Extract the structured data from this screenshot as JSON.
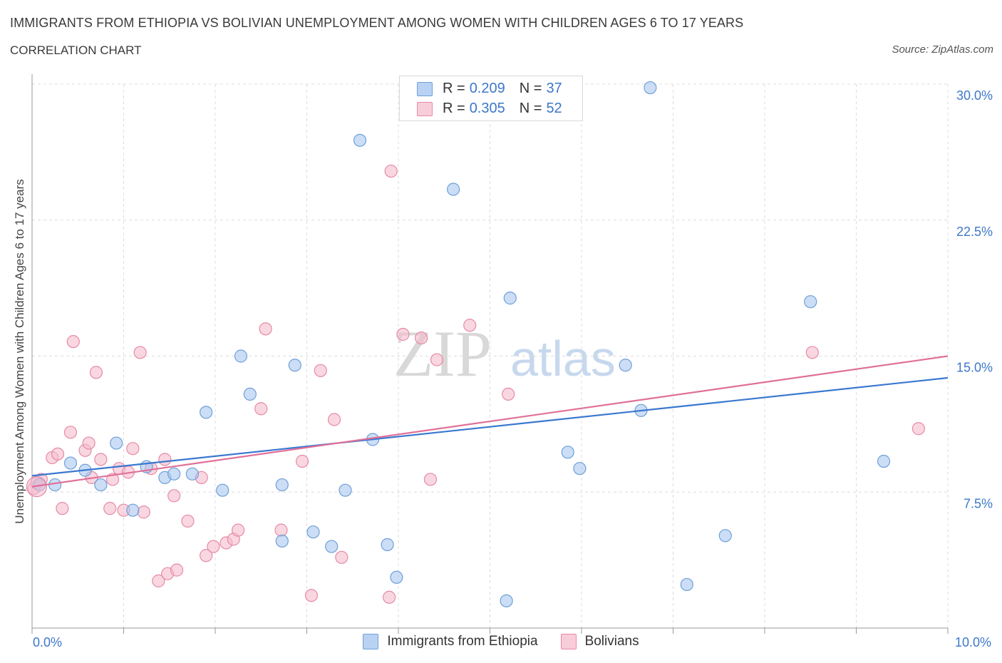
{
  "header": {
    "title": "IMMIGRANTS FROM ETHIOPIA VS BOLIVIAN UNEMPLOYMENT AMONG WOMEN WITH CHILDREN AGES 6 TO 17 YEARS",
    "subtitle": "CORRELATION CHART",
    "source": "Source: ZipAtlas.com"
  },
  "legend_top": [
    {
      "r_label": "R = ",
      "r_value": "0.209",
      "n_label": "N = ",
      "n_value": "37",
      "color": "#a9c8f0"
    },
    {
      "r_label": "R = ",
      "r_value": "0.305",
      "n_label": "N = ",
      "n_value": "52",
      "color": "#f5bccd"
    }
  ],
  "legend_bottom": [
    "Immigrants from Ethiopia",
    "Bolivians"
  ],
  "x_tick_labels": {
    "min": "0.0%",
    "max": "10.0%"
  },
  "watermark": {
    "zip": "ZIP",
    "atlas": "atlas"
  },
  "colors": {
    "ethiopia_fill": "#a9c8f0",
    "ethiopia_stroke": "#6f9fd8",
    "ethiopia_line": "#3a78d0",
    "bolivia_fill": "#f5bccd",
    "bolivia_stroke": "#e68aa6",
    "bolivia_line": "#e07098",
    "accent_text": "#3d77c9",
    "grid": "#dcdcdc"
  },
  "chart_data": {
    "type": "scatter",
    "title": "IMMIGRANTS FROM ETHIOPIA VS BOLIVIAN UNEMPLOYMENT AMONG WOMEN WITH CHILDREN AGES 6 TO 17 YEARS",
    "xlabel": "",
    "ylabel": "Unemployment Among Women with Children Ages 6 to 17 years",
    "xlim": [
      0,
      10
    ],
    "ylim": [
      0,
      30
    ],
    "y_ticks": [
      {
        "value": 7.5,
        "label": "7.5%"
      },
      {
        "value": 15,
        "label": "15.0%"
      },
      {
        "value": 22.5,
        "label": "22.5%"
      },
      {
        "value": 30,
        "label": "30.0%"
      }
    ],
    "grid": true,
    "legend_position": "top-center",
    "series": [
      {
        "name": "Immigrants from Ethiopia",
        "points": [
          [
            0.08,
            7.9
          ],
          [
            0.25,
            7.9
          ],
          [
            0.42,
            9.1
          ],
          [
            0.58,
            8.7
          ],
          [
            0.75,
            7.9
          ],
          [
            0.92,
            10.2
          ],
          [
            1.1,
            6.5
          ],
          [
            1.25,
            8.9
          ],
          [
            1.45,
            8.3
          ],
          [
            1.55,
            8.5
          ],
          [
            1.75,
            8.5
          ],
          [
            1.9,
            11.9
          ],
          [
            2.08,
            7.6
          ],
          [
            2.28,
            15.0
          ],
          [
            2.38,
            12.9
          ],
          [
            2.73,
            4.8
          ],
          [
            2.73,
            7.9
          ],
          [
            2.87,
            14.5
          ],
          [
            3.07,
            5.3
          ],
          [
            3.27,
            4.5
          ],
          [
            3.42,
            7.6
          ],
          [
            3.72,
            10.4
          ],
          [
            3.58,
            26.9
          ],
          [
            3.88,
            4.6
          ],
          [
            3.98,
            2.8
          ],
          [
            4.6,
            24.2
          ],
          [
            5.18,
            1.5
          ],
          [
            5.22,
            18.2
          ],
          [
            5.85,
            9.7
          ],
          [
            5.98,
            8.8
          ],
          [
            6.48,
            14.5
          ],
          [
            6.65,
            12.0
          ],
          [
            6.75,
            29.8
          ],
          [
            7.15,
            2.4
          ],
          [
            7.57,
            5.1
          ],
          [
            8.5,
            18.0
          ],
          [
            9.3,
            9.2
          ]
        ]
      },
      {
        "name": "Bolivians",
        "points": [
          [
            0.02,
            7.7
          ],
          [
            0.1,
            8.2
          ],
          [
            0.22,
            9.4
          ],
          [
            0.28,
            9.6
          ],
          [
            0.33,
            6.6
          ],
          [
            0.42,
            10.8
          ],
          [
            0.45,
            15.8
          ],
          [
            0.58,
            9.8
          ],
          [
            0.62,
            10.2
          ],
          [
            0.65,
            8.3
          ],
          [
            0.7,
            14.1
          ],
          [
            0.75,
            9.3
          ],
          [
            0.85,
            6.6
          ],
          [
            0.88,
            8.2
          ],
          [
            0.95,
            8.8
          ],
          [
            1.0,
            6.5
          ],
          [
            1.05,
            8.6
          ],
          [
            1.1,
            9.9
          ],
          [
            1.18,
            15.2
          ],
          [
            1.22,
            6.4
          ],
          [
            1.3,
            8.8
          ],
          [
            1.38,
            2.6
          ],
          [
            1.45,
            9.3
          ],
          [
            1.48,
            3.0
          ],
          [
            1.55,
            7.3
          ],
          [
            1.58,
            3.2
          ],
          [
            1.7,
            5.9
          ],
          [
            1.85,
            8.3
          ],
          [
            1.9,
            4.0
          ],
          [
            1.98,
            4.5
          ],
          [
            2.12,
            4.7
          ],
          [
            2.2,
            4.9
          ],
          [
            2.25,
            5.4
          ],
          [
            2.5,
            12.1
          ],
          [
            2.55,
            16.5
          ],
          [
            2.72,
            5.4
          ],
          [
            2.95,
            9.2
          ],
          [
            3.05,
            1.8
          ],
          [
            3.15,
            14.2
          ],
          [
            3.3,
            11.5
          ],
          [
            3.38,
            3.9
          ],
          [
            3.9,
            1.7
          ],
          [
            3.92,
            25.2
          ],
          [
            4.05,
            16.2
          ],
          [
            4.25,
            16.0
          ],
          [
            4.35,
            8.2
          ],
          [
            4.42,
            14.8
          ],
          [
            4.78,
            16.7
          ],
          [
            5.2,
            12.9
          ],
          [
            8.52,
            15.2
          ],
          [
            9.68,
            11.0
          ],
          [
            0.05,
            8.0
          ]
        ]
      }
    ],
    "trend_lines": [
      {
        "name": "Immigrants from Ethiopia",
        "y_at_xmin": 8.4,
        "y_at_xmax": 13.8
      },
      {
        "name": "Bolivians",
        "y_at_xmin": 7.8,
        "y_at_xmax": 15.0
      }
    ]
  }
}
